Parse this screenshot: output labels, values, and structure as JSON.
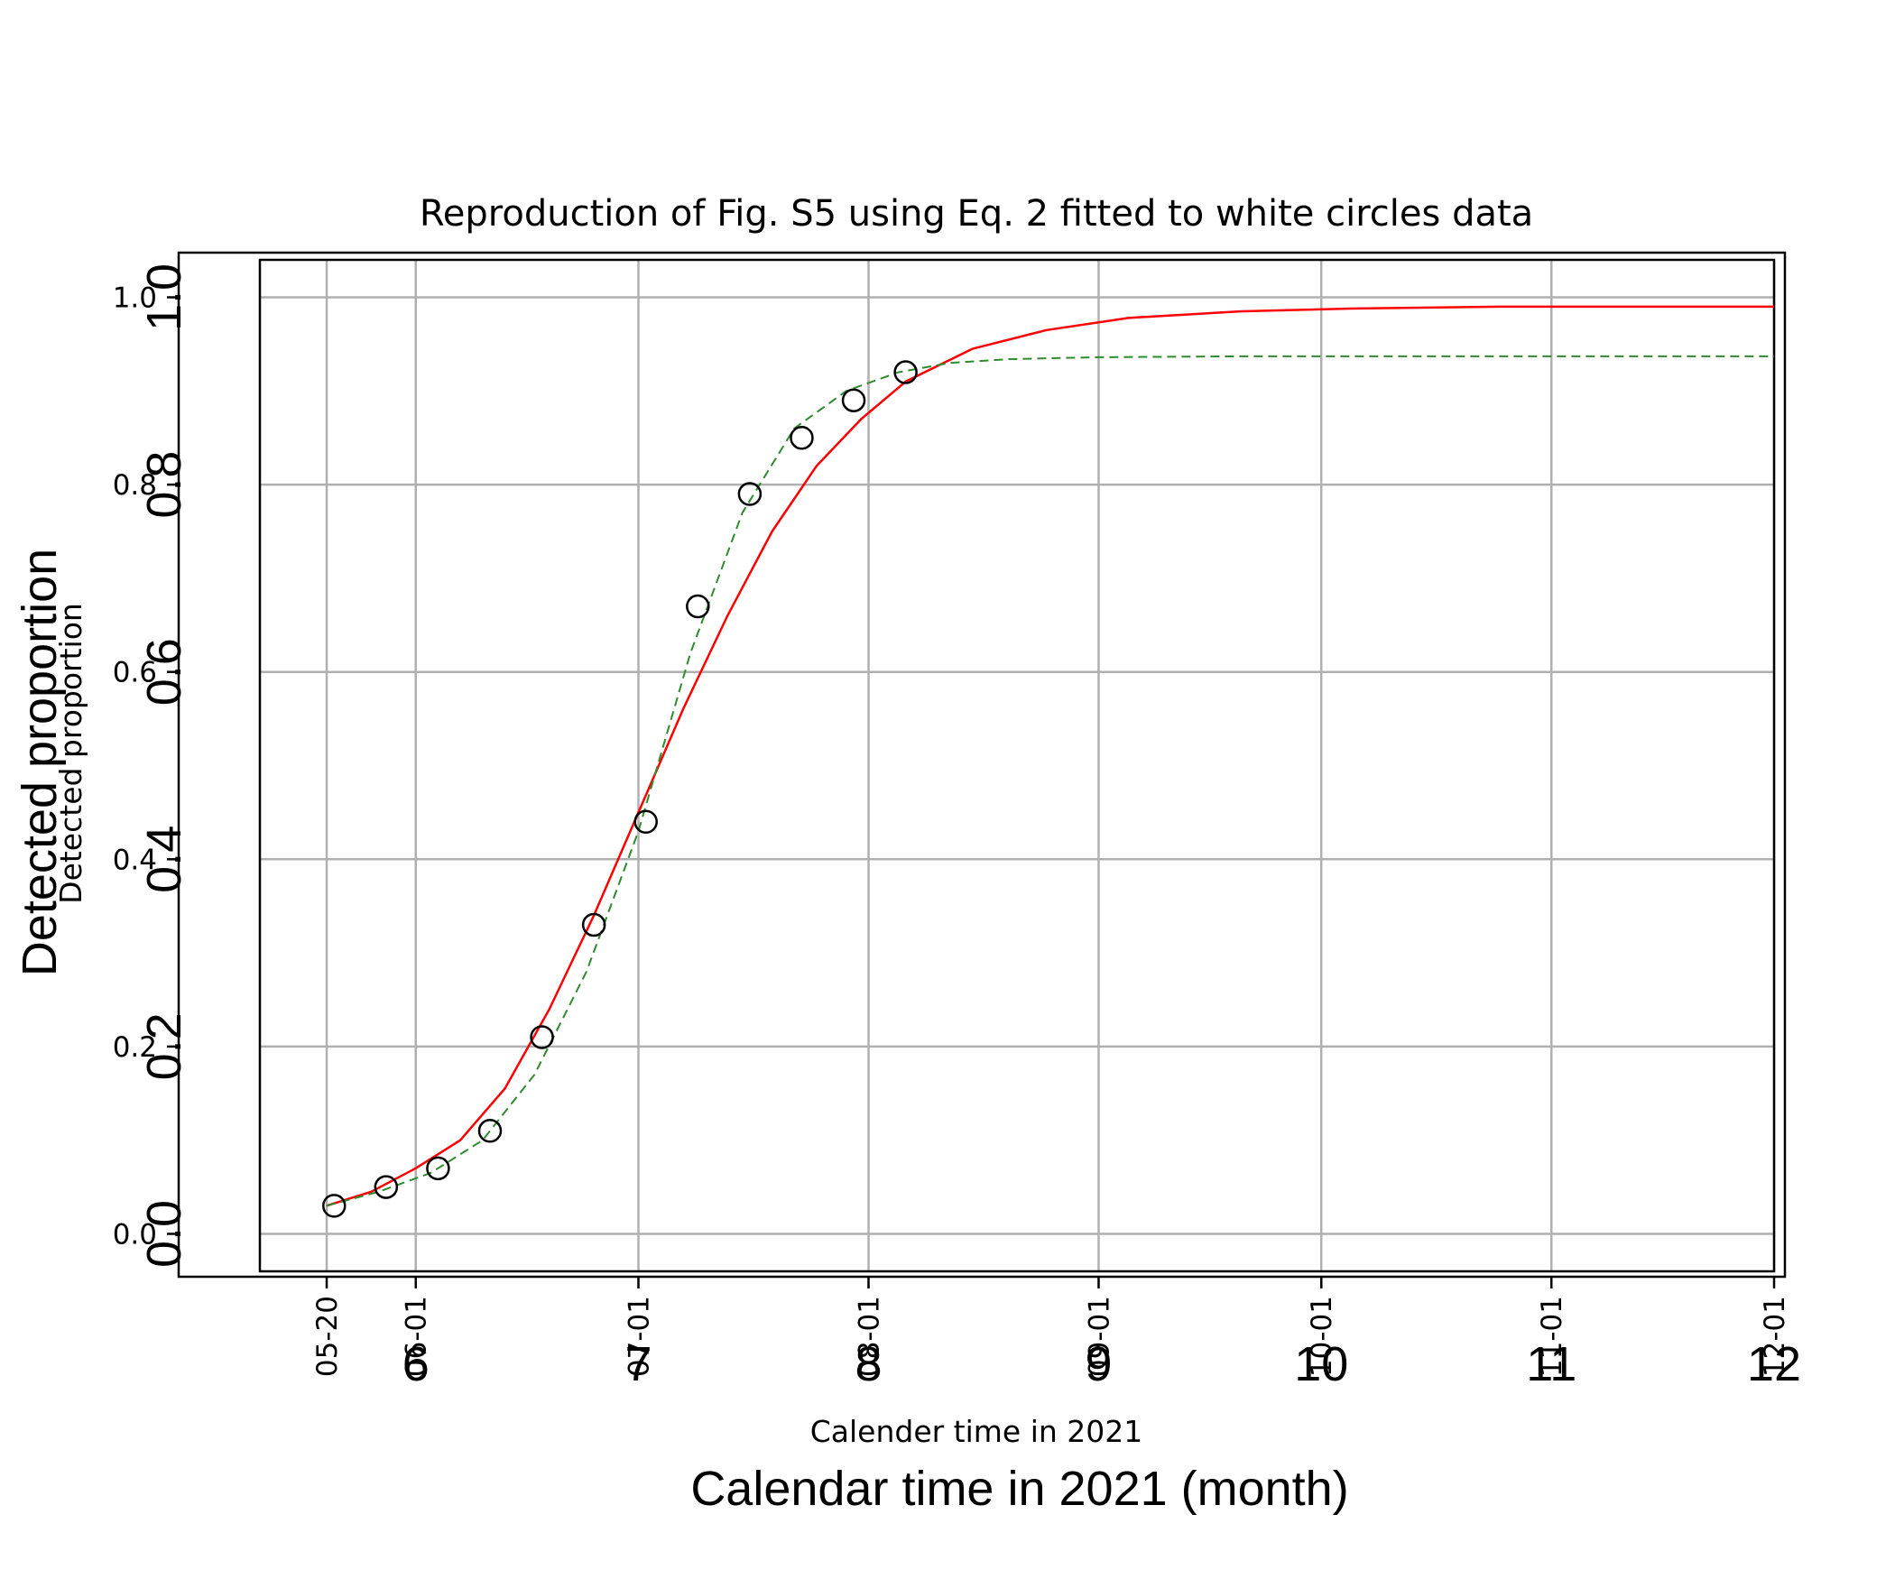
{
  "chart_data": {
    "type": "line",
    "title": "Reproduction of Fig. S5 using Eq. 2 fitted to white circles data",
    "xlabel": "Calender time in 2021",
    "ylabel": "Detected proportion",
    "overlay_xlabel": "Calendar time in 2021 (month)",
    "overlay_ylabel": "Detected proportion",
    "xlim": [
      "2021-05-11",
      "2021-12-01"
    ],
    "ylim": [
      -0.04,
      1.04
    ],
    "grid": true,
    "x_tick_dates": [
      "2021-05-20",
      "2021-06-01",
      "2021-07-01",
      "2021-08-01",
      "2021-09-01",
      "2021-10-01",
      "2021-11-01",
      "2021-12-01"
    ],
    "x_tick_labels": [
      "05-20",
      "06-01",
      "07-01",
      "08-01",
      "09-01",
      "10-01",
      "11-01",
      "12-01"
    ],
    "overlay_x_tick_dates": [
      "2021-06-01",
      "2021-07-01",
      "2021-08-01",
      "2021-09-01",
      "2021-10-01",
      "2021-11-01",
      "2021-12-01"
    ],
    "overlay_x_tick_labels": [
      "6",
      "7",
      "8",
      "9",
      "10",
      "11",
      "12"
    ],
    "y_ticks": [
      0.0,
      0.2,
      0.4,
      0.6,
      0.8,
      1.0
    ],
    "y_tick_labels": [
      "0.0",
      "0.2",
      "0.4",
      "0.6",
      "0.8",
      "1.0"
    ],
    "overlay_y_tick_labels": [
      "0.0",
      "0.2",
      "0.4",
      "0.6",
      "0.8",
      "1.0"
    ],
    "series": [
      {
        "kind": "scatter",
        "marker": "open-circle",
        "color": "#000000",
        "x": [
          "2021-05-21",
          "2021-05-28",
          "2021-06-04",
          "2021-06-11",
          "2021-06-18",
          "2021-06-25",
          "2021-07-02",
          "2021-07-09",
          "2021-07-16",
          "2021-07-23",
          "2021-07-30",
          "2021-08-06"
        ],
        "y": [
          0.03,
          0.05,
          0.07,
          0.11,
          0.21,
          0.33,
          0.44,
          0.67,
          0.79,
          0.85,
          0.89,
          0.92
        ]
      },
      {
        "kind": "line",
        "style": "solid",
        "color": "#ff0000",
        "x": [
          "2021-05-20",
          "2021-05-26",
          "2021-06-01",
          "2021-06-07",
          "2021-06-13",
          "2021-06-19",
          "2021-06-25",
          "2021-07-01",
          "2021-07-07",
          "2021-07-13",
          "2021-07-19",
          "2021-07-25",
          "2021-07-31",
          "2021-08-06",
          "2021-08-15",
          "2021-08-25",
          "2021-09-05",
          "2021-09-20",
          "2021-10-05",
          "2021-10-25",
          "2021-11-15",
          "2021-12-01"
        ],
        "y": [
          0.03,
          0.045,
          0.07,
          0.1,
          0.155,
          0.24,
          0.34,
          0.45,
          0.56,
          0.66,
          0.75,
          0.82,
          0.87,
          0.91,
          0.945,
          0.965,
          0.978,
          0.985,
          0.988,
          0.99,
          0.99,
          0.99
        ]
      },
      {
        "kind": "line",
        "style": "dashed",
        "color": "#2e8b2e",
        "x": [
          "2021-05-20",
          "2021-05-27",
          "2021-06-03",
          "2021-06-10",
          "2021-06-17",
          "2021-06-24",
          "2021-07-01",
          "2021-07-08",
          "2021-07-15",
          "2021-07-22",
          "2021-07-29",
          "2021-08-05",
          "2021-08-12",
          "2021-08-20",
          "2021-09-01",
          "2021-09-20",
          "2021-10-15",
          "2021-11-10",
          "2021-12-01"
        ],
        "y": [
          0.03,
          0.045,
          0.065,
          0.1,
          0.17,
          0.28,
          0.43,
          0.62,
          0.77,
          0.86,
          0.9,
          0.92,
          0.93,
          0.934,
          0.936,
          0.937,
          0.937,
          0.937,
          0.937
        ]
      }
    ]
  }
}
